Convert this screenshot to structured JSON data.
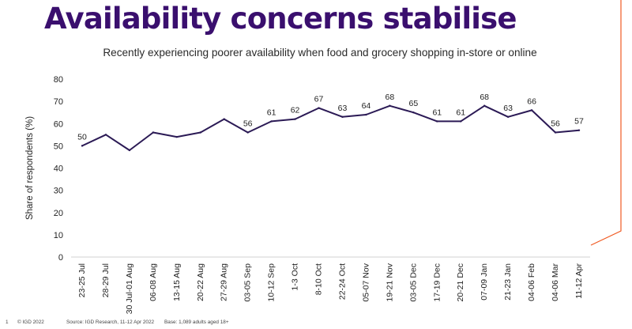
{
  "page": {
    "title": "Availability concerns stabilise",
    "footer": {
      "page_number": "1",
      "copyright": "© IGD 2022",
      "source": "Source: IGD Research, 11-12 Apr 2022",
      "base": "Base: 1,089 adults aged 18+"
    },
    "accent_color": "#f05a22",
    "title_color": "#3a0f6e"
  },
  "chart_data": {
    "type": "line",
    "title": "Recently experiencing poorer availability when food and grocery shopping in-store or online",
    "ylabel": "Share of respondents (%)",
    "xlabel": "",
    "ylim": [
      0,
      80
    ],
    "yticks": [
      0,
      10,
      20,
      30,
      40,
      50,
      60,
      70,
      80
    ],
    "grid": false,
    "legend": "none",
    "line_color": "#2b1a55",
    "categories": [
      "23-25 Jul",
      "28-29 Jul",
      "30 Jul-01 Aug",
      "06-08 Aug",
      "13-15 Aug",
      "20-22 Aug",
      "27-29 Aug",
      "03-05 Sep",
      "10-12 Sep",
      "1-3 Oct",
      "8-10 Oct",
      "22-24 Oct",
      "05-07 Nov",
      "19-21 Nov",
      "03-05 Dec",
      "17-19 Dec",
      "20-21 Dec",
      "07-09 Jan",
      "21-23 Jan",
      "04-06 Feb",
      "04-06 Mar",
      "11-12 Apr"
    ],
    "series": [
      {
        "values": [
          50,
          55,
          48,
          56,
          54,
          56,
          62,
          56,
          61,
          62,
          67,
          63,
          64,
          68,
          65,
          61,
          61,
          68,
          63,
          66,
          56,
          57
        ],
        "labeled": [
          true,
          false,
          false,
          false,
          false,
          false,
          false,
          true,
          true,
          true,
          true,
          true,
          true,
          true,
          true,
          true,
          true,
          true,
          true,
          true,
          true,
          true
        ]
      }
    ]
  }
}
